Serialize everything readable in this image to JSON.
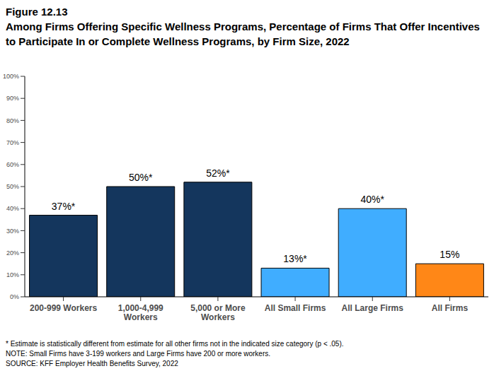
{
  "chart_data": {
    "type": "bar",
    "title": "Figure 12.13",
    "subtitle": "Among Firms Offering Specific Wellness Programs, Percentage of Firms That Offer Incentives to Participate In or Complete Wellness Programs, by Firm Size, 2022",
    "categories": [
      "200-999 Workers",
      "1,000-4,999 Workers",
      "5,000 or More Workers",
      "All Small Firms",
      "All Large Firms",
      "All Firms"
    ],
    "values": [
      37,
      50,
      52,
      13,
      40,
      15
    ],
    "value_labels": [
      "37%*",
      "50%*",
      "52%*",
      "13%*",
      "40%*",
      "15%"
    ],
    "colors": [
      "#14365d",
      "#14365d",
      "#14365d",
      "#40adff",
      "#40adff",
      "#ff8717"
    ],
    "ylim": [
      0,
      100
    ],
    "yticks": [
      {
        "value": 0,
        "label": "0%"
      },
      {
        "value": 10,
        "label": "10%"
      },
      {
        "value": 20,
        "label": "20%"
      },
      {
        "value": 30,
        "label": "30%"
      },
      {
        "value": 40,
        "label": "40%"
      },
      {
        "value": 50,
        "label": "50%"
      },
      {
        "value": 60,
        "label": "60%"
      },
      {
        "value": 70,
        "label": "70%"
      },
      {
        "value": 80,
        "label": "80%"
      },
      {
        "value": 90,
        "label": "90%"
      },
      {
        "value": 100,
        "label": "100%"
      }
    ],
    "grid": false,
    "data_labels": true,
    "annotations": [
      "* Estimate is statistically different from estimate for all other firms not in the indicated size category (p < .05).",
      "NOTE: Small Firms have 3-199 workers and Large Firms have 200 or more workers.",
      "SOURCE: KFF Employer Health Benefits Survey, 2022"
    ]
  }
}
